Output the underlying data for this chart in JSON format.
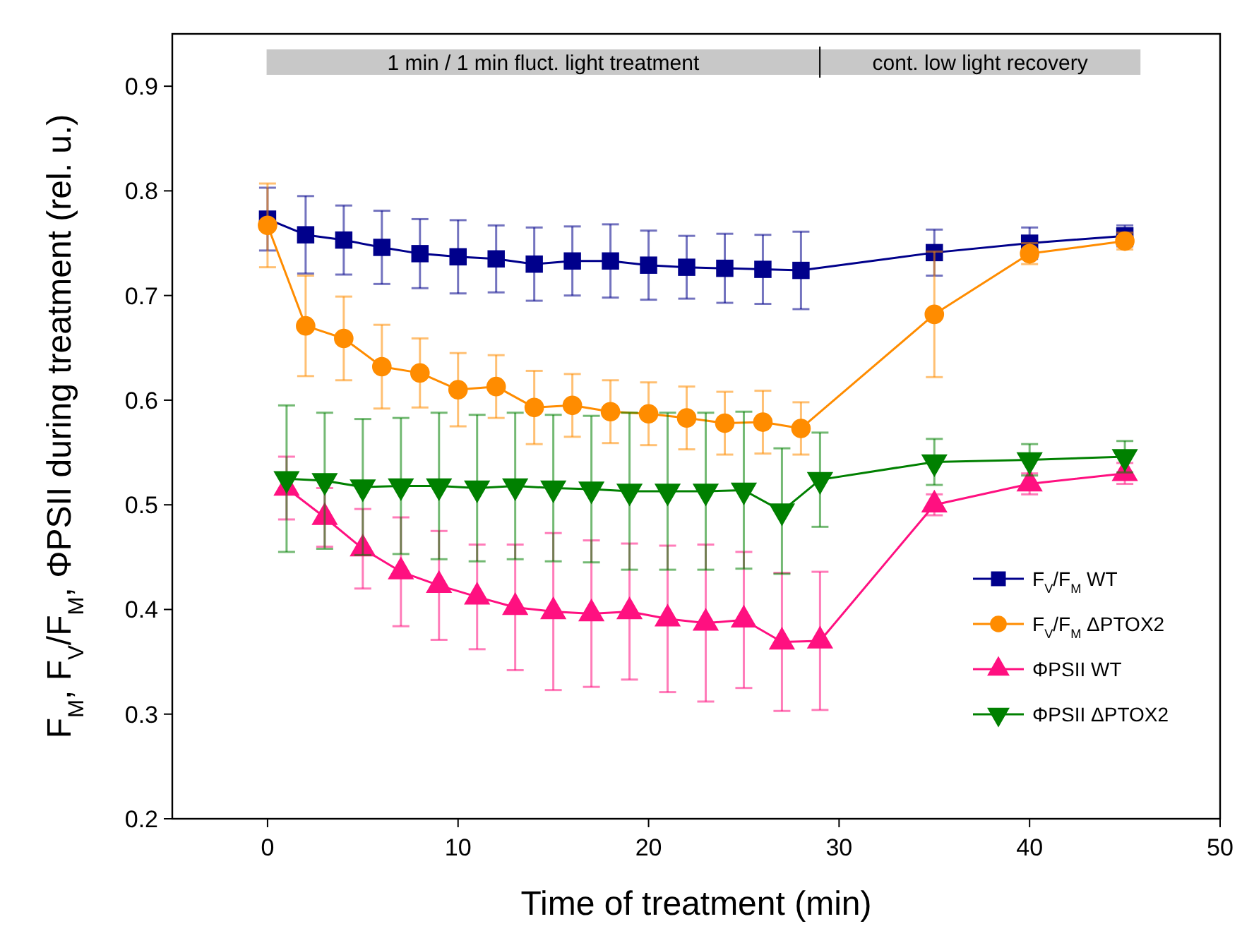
{
  "chart_data": {
    "type": "line",
    "xlabel": "Time of treatment (min)",
    "ylabel": "F$_{M}$, F$_{V}$/F$_{M}$,  ΦPSII during treatment (rel. u.)",
    "xlim": [
      -5,
      50
    ],
    "xticks": [
      0,
      10,
      20,
      30,
      40,
      50
    ],
    "ylim": [
      0.2,
      0.95
    ],
    "yticks": [
      0.2,
      0.3,
      0.4,
      0.5,
      0.6,
      0.7,
      0.8,
      0.9
    ],
    "legend": "bottom right",
    "grid": false,
    "annotations": [
      "1 min / 1 min fluct. light treatment",
      "cont. low light recovery"
    ],
    "series": [
      {
        "name": "F$_{V}$/F$_{M}$ WT",
        "color": "#00008b",
        "marker": "square",
        "x": [
          0,
          2,
          4,
          6,
          8,
          10,
          12,
          14,
          16,
          18,
          20,
          22,
          24,
          26,
          28,
          35,
          40,
          45
        ],
        "values": [
          0.773,
          0.758,
          0.753,
          0.746,
          0.74,
          0.737,
          0.735,
          0.73,
          0.733,
          0.733,
          0.729,
          0.727,
          0.726,
          0.725,
          0.724,
          0.741,
          0.75,
          0.757
        ],
        "errors": [
          0.03,
          0.037,
          0.033,
          0.035,
          0.033,
          0.035,
          0.032,
          0.035,
          0.033,
          0.035,
          0.033,
          0.03,
          0.033,
          0.033,
          0.037,
          0.022,
          0.015,
          0.01
        ]
      },
      {
        "name": "F$_{V}$/F$_{M}$ ΔPTOX2",
        "color": "#ff8c00",
        "marker": "circle",
        "x": [
          0,
          2,
          4,
          6,
          8,
          10,
          12,
          14,
          16,
          18,
          20,
          22,
          24,
          26,
          28,
          35,
          40,
          45
        ],
        "values": [
          0.767,
          0.671,
          0.659,
          0.632,
          0.626,
          0.61,
          0.613,
          0.593,
          0.595,
          0.589,
          0.587,
          0.583,
          0.578,
          0.579,
          0.573,
          0.682,
          0.74,
          0.752
        ],
        "errors": [
          0.04,
          0.048,
          0.04,
          0.04,
          0.033,
          0.035,
          0.03,
          0.035,
          0.03,
          0.03,
          0.03,
          0.03,
          0.03,
          0.03,
          0.025,
          0.06,
          0.01,
          0.008
        ]
      },
      {
        "name": "ΦPSII WT",
        "color": "#ff1080",
        "marker": "triangle",
        "x": [
          1,
          3,
          5,
          7,
          9,
          11,
          13,
          15,
          17,
          19,
          21,
          23,
          25,
          27,
          29,
          35,
          40,
          45
        ],
        "values": [
          0.516,
          0.488,
          0.458,
          0.436,
          0.423,
          0.412,
          0.402,
          0.398,
          0.396,
          0.398,
          0.391,
          0.387,
          0.39,
          0.369,
          0.37,
          0.5,
          0.52,
          0.53
        ],
        "errors": [
          0.03,
          0.028,
          0.038,
          0.052,
          0.052,
          0.05,
          0.06,
          0.075,
          0.07,
          0.065,
          0.07,
          0.075,
          0.065,
          0.066,
          0.066,
          0.01,
          0.01,
          0.01
        ]
      },
      {
        "name": "ΦPSII ΔPTOX2",
        "color": "#008000",
        "marker": "triangle-down",
        "x": [
          1,
          3,
          5,
          7,
          9,
          11,
          13,
          15,
          17,
          19,
          21,
          23,
          25,
          27,
          29,
          35,
          40,
          45
        ],
        "values": [
          0.525,
          0.523,
          0.517,
          0.518,
          0.518,
          0.516,
          0.518,
          0.516,
          0.515,
          0.513,
          0.513,
          0.513,
          0.514,
          0.494,
          0.524,
          0.541,
          0.543,
          0.546
        ],
        "errors": [
          0.07,
          0.065,
          0.065,
          0.065,
          0.07,
          0.07,
          0.07,
          0.07,
          0.07,
          0.075,
          0.075,
          0.075,
          0.075,
          0.06,
          0.045,
          0.022,
          0.015,
          0.015
        ]
      }
    ]
  }
}
